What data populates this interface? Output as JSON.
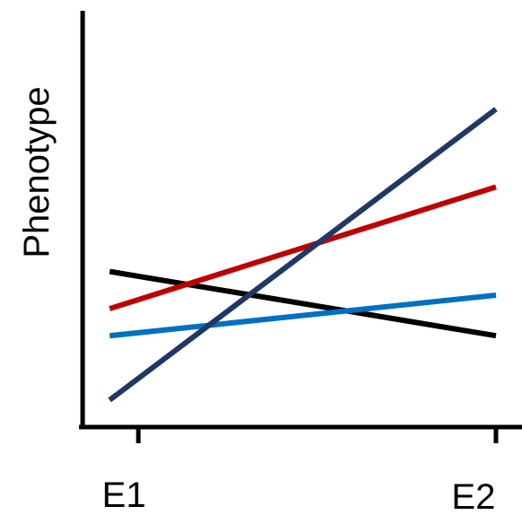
{
  "chart_data": {
    "type": "line",
    "title": "",
    "xlabel": "",
    "ylabel": "Phenotype",
    "categories": [
      "E1",
      "E2"
    ],
    "grid": false,
    "legend": "none",
    "ylim": [
      0,
      100
    ],
    "series": [
      {
        "color": "#000000",
        "values": [
          46,
          27
        ]
      },
      {
        "color": "#c00000",
        "values": [
          35,
          71
        ]
      },
      {
        "color": "#0070c0",
        "values": [
          27,
          39
        ]
      },
      {
        "color": "#203864",
        "values": [
          8,
          94
        ]
      }
    ]
  }
}
